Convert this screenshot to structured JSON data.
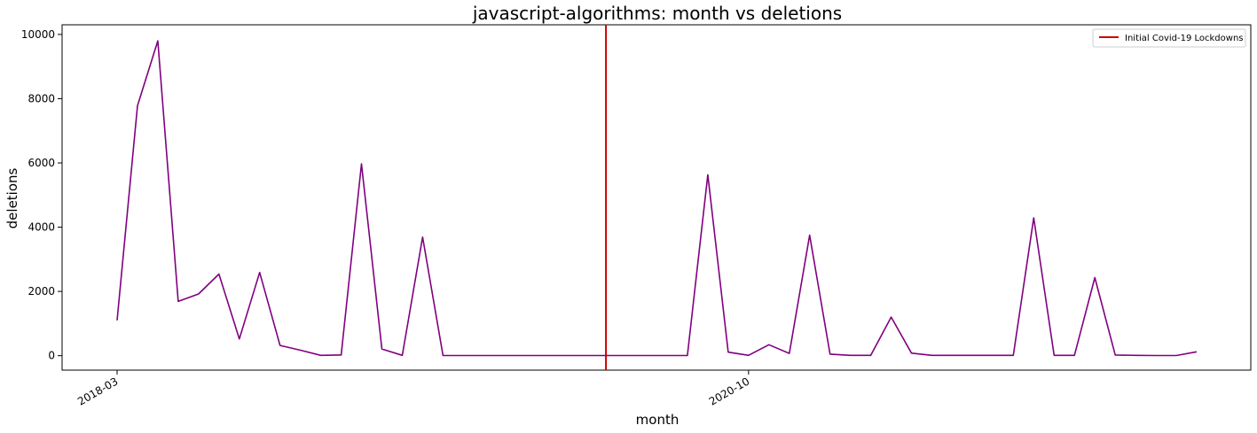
{
  "chart_data": {
    "type": "line",
    "title": "javascript-algorithms: month vs deletions",
    "xlabel": "month",
    "ylabel": "deletions",
    "x_tick_labels": [
      "2018-03",
      "2020-10"
    ],
    "x_tick_values": [
      "2018-03",
      "2020-10"
    ],
    "ylim": [
      -450,
      10300
    ],
    "y_ticks": [
      0,
      2000,
      4000,
      6000,
      8000,
      10000
    ],
    "grid": false,
    "legend_position": "top-right",
    "series": [
      {
        "color": "#800080",
        "x": [
          "2018-03",
          "2018-04",
          "2018-05",
          "2018-06",
          "2018-07",
          "2018-08",
          "2018-09",
          "2018-10",
          "2018-11",
          "2018-12",
          "2019-01",
          "2019-02",
          "2019-03",
          "2019-04",
          "2019-05",
          "2019-06",
          "2019-07",
          "2019-08",
          "2019-09",
          "2019-10",
          "2019-11",
          "2019-12",
          "2020-01",
          "2020-02",
          "2020-03",
          "2020-04",
          "2020-05",
          "2020-06",
          "2020-07",
          "2020-08",
          "2020-09",
          "2020-10",
          "2020-11",
          "2020-12",
          "2021-01",
          "2021-02",
          "2021-03",
          "2021-04",
          "2021-05",
          "2021-06",
          "2021-07",
          "2021-08",
          "2021-09",
          "2021-10",
          "2021-11",
          "2021-12",
          "2022-01",
          "2022-02",
          "2022-03",
          "2022-04",
          "2022-05",
          "2022-06",
          "2022-07",
          "2022-08"
        ],
        "values": [
          1100,
          7780,
          9800,
          1690,
          1920,
          2540,
          520,
          2590,
          320,
          170,
          10,
          20,
          5970,
          210,
          10,
          3690,
          5,
          5,
          5,
          5,
          5,
          5,
          5,
          5,
          5,
          5,
          5,
          5,
          5,
          5632,
          110,
          10,
          340,
          70,
          3750,
          50,
          10,
          10,
          1200,
          80,
          10,
          10,
          10,
          10,
          10,
          4290,
          10,
          10,
          2430,
          20,
          10,
          5,
          5,
          120
        ]
      },
      {
        "name": "Initial Covid-19 Lockdowns",
        "type": "vline",
        "x": "2020-03",
        "color": "#cc0000"
      }
    ]
  }
}
